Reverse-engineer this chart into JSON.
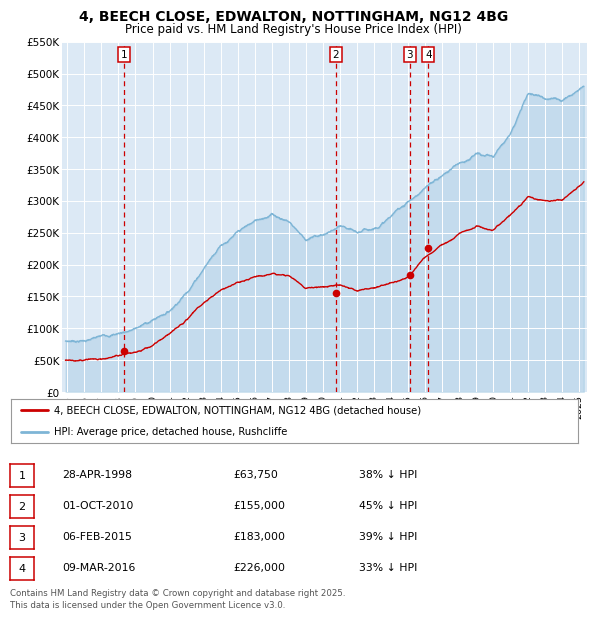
{
  "title": "4, BEECH CLOSE, EDWALTON, NOTTINGHAM, NG12 4BG",
  "subtitle": "Price paid vs. HM Land Registry's House Price Index (HPI)",
  "bg_color": "#dce9f5",
  "hpi_color": "#7eb5d6",
  "price_color": "#cc0000",
  "vline_color": "#cc0000",
  "transactions": [
    {
      "label": "1",
      "date_num": 1998.32,
      "price": 63750
    },
    {
      "label": "2",
      "date_num": 2010.75,
      "price": 155000
    },
    {
      "label": "3",
      "date_num": 2015.09,
      "price": 183000
    },
    {
      "label": "4",
      "date_num": 2016.18,
      "price": 226000
    }
  ],
  "table_rows": [
    {
      "num": "1",
      "date": "28-APR-1998",
      "price": "£63,750",
      "hpi": "38% ↓ HPI"
    },
    {
      "num": "2",
      "date": "01-OCT-2010",
      "price": "£155,000",
      "hpi": "45% ↓ HPI"
    },
    {
      "num": "3",
      "date": "06-FEB-2015",
      "price": "£183,000",
      "hpi": "39% ↓ HPI"
    },
    {
      "num": "4",
      "date": "09-MAR-2016",
      "price": "£226,000",
      "hpi": "33% ↓ HPI"
    }
  ],
  "legend_entries": [
    {
      "label": "4, BEECH CLOSE, EDWALTON, NOTTINGHAM, NG12 4BG (detached house)",
      "color": "#cc0000"
    },
    {
      "label": "HPI: Average price, detached house, Rushcliffe",
      "color": "#7eb5d6"
    }
  ],
  "footer": "Contains HM Land Registry data © Crown copyright and database right 2025.\nThis data is licensed under the Open Government Licence v3.0.",
  "ylim": [
    0,
    550000
  ],
  "xlim": [
    1994.7,
    2025.5
  ],
  "yticks": [
    0,
    50000,
    100000,
    150000,
    200000,
    250000,
    300000,
    350000,
    400000,
    450000,
    500000,
    550000
  ],
  "ytick_labels": [
    "£0",
    "£50K",
    "£100K",
    "£150K",
    "£200K",
    "£250K",
    "£300K",
    "£350K",
    "£400K",
    "£450K",
    "£500K",
    "£550K"
  ],
  "xtick_years": [
    1995,
    1996,
    1997,
    1998,
    1999,
    2000,
    2001,
    2002,
    2003,
    2004,
    2005,
    2006,
    2007,
    2008,
    2009,
    2010,
    2011,
    2012,
    2013,
    2014,
    2015,
    2016,
    2017,
    2018,
    2019,
    2020,
    2021,
    2022,
    2023,
    2024,
    2025
  ]
}
